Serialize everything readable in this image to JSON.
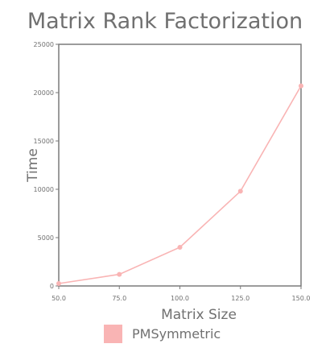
{
  "chart_data": {
    "type": "line",
    "title": "Matrix Rank Factorization",
    "xlabel": "Matrix Size",
    "ylabel": "Time",
    "xlim": [
      50,
      150
    ],
    "ylim": [
      0,
      25000
    ],
    "x_ticks": [
      "50.0",
      "75.0",
      "100.0",
      "125.0",
      "150.0"
    ],
    "y_ticks": [
      "0",
      "5000",
      "10000",
      "15000",
      "20000",
      "25000"
    ],
    "grid": false,
    "legend": "bottom",
    "series": [
      {
        "name": "PMSymmetric",
        "color": "#f9b4b4",
        "x": [
          50,
          75,
          100,
          125,
          150
        ],
        "y": [
          250,
          1200,
          4000,
          9800,
          20700
        ]
      }
    ]
  }
}
